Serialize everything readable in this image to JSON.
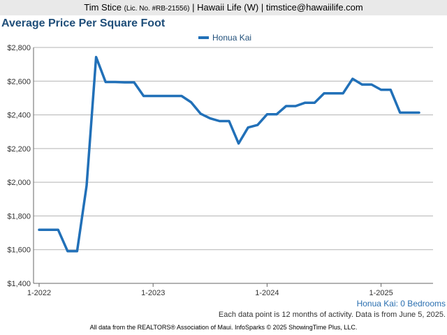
{
  "header": {
    "agent": "Tim Stice",
    "license": "(Lic. No. #RB-21556)",
    "rest": "| Hawaii Life (W) | timstice@hawaiilife.com"
  },
  "footer": {
    "subtitle": "Honua Kai: 0 Bedrooms",
    "note": "Each data point is 12 months of activity. Data is from June 5, 2025.",
    "credits": "All data from the REALTORS® Association of Maui. InfoSparks © 2025 ShowingTime Plus, LLC."
  },
  "colors": {
    "series": "#2170b8",
    "title": "#1f4e79",
    "grid": "#b3b3b3"
  },
  "chart_data": {
    "type": "line",
    "title": "Average Price Per Square Foot",
    "xlabel": "",
    "ylabel": "",
    "ylim": [
      1400,
      2800
    ],
    "yticks": [
      1400,
      1600,
      1800,
      2000,
      2200,
      2400,
      2600,
      2800
    ],
    "ytick_labels": [
      "$1,400",
      "$1,600",
      "$1,800",
      "$2,000",
      "$2,200",
      "$2,400",
      "$2,600",
      "$2,800"
    ],
    "xticks": [
      "2022-01",
      "2023-01",
      "2024-01",
      "2025-01"
    ],
    "xtick_labels": [
      "1-2022",
      "1-2023",
      "1-2024",
      "1-2025"
    ],
    "grid": true,
    "legend": "top-center",
    "x": [
      "2022-01",
      "2022-02",
      "2022-03",
      "2022-04",
      "2022-05",
      "2022-06",
      "2022-07",
      "2022-08",
      "2022-09",
      "2022-10",
      "2022-11",
      "2022-12",
      "2023-01",
      "2023-02",
      "2023-03",
      "2023-04",
      "2023-05",
      "2023-06",
      "2023-07",
      "2023-08",
      "2023-09",
      "2023-10",
      "2023-11",
      "2023-12",
      "2024-01",
      "2024-02",
      "2024-03",
      "2024-04",
      "2024-05",
      "2024-06",
      "2024-07",
      "2024-08",
      "2024-09",
      "2024-10",
      "2024-11",
      "2024-12",
      "2025-01",
      "2025-02",
      "2025-03",
      "2025-04",
      "2025-05"
    ],
    "series": [
      {
        "name": "Honua Kai",
        "values": [
          1718,
          1718,
          1718,
          1591,
          1591,
          1980,
          2743,
          2595,
          2595,
          2593,
          2593,
          2512,
          2512,
          2512,
          2512,
          2512,
          2475,
          2407,
          2379,
          2363,
          2363,
          2230,
          2325,
          2340,
          2403,
          2403,
          2452,
          2452,
          2472,
          2472,
          2528,
          2528,
          2528,
          2614,
          2580,
          2580,
          2549,
          2549,
          2413,
          2413,
          2413
        ]
      }
    ]
  }
}
